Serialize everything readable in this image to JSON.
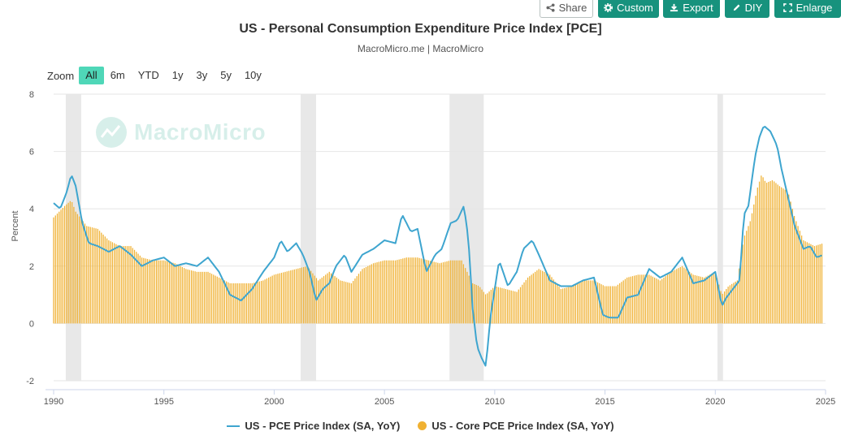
{
  "toolbar": {
    "share": "Share",
    "custom": "Custom",
    "export": "Export",
    "diy": "DIY",
    "enlarge": "Enlarge"
  },
  "title": "US - Personal Consumption Expenditure Price Index [PCE]",
  "subtitle": "MacroMicro.me | MacroMicro",
  "zoom": {
    "label": "Zoom",
    "options": [
      "All",
      "6m",
      "YTD",
      "1y",
      "3y",
      "5y",
      "10y"
    ],
    "selected": "All"
  },
  "watermark": "MacroMicro",
  "colors": {
    "pce": "#3ea5cf",
    "core": "#f0b132",
    "recession": "#e8e8e8",
    "accent": "#17927d"
  },
  "chart_data": {
    "type": "line+bar",
    "ylabel": "Percent",
    "ylim": [
      -2,
      8
    ],
    "yticks": [
      -2,
      0,
      2,
      4,
      6,
      8
    ],
    "xlim": [
      1990,
      2025
    ],
    "xticks": [
      1990,
      1995,
      2000,
      2005,
      2010,
      2015,
      2020,
      2025
    ],
    "grid": true,
    "legend_position": "bottom-center",
    "recession_bands": [
      [
        1990.55,
        1991.25
      ],
      [
        2001.2,
        2001.9
      ],
      [
        2007.95,
        2009.5
      ],
      [
        2020.1,
        2020.35
      ]
    ],
    "series": [
      {
        "name": "US - PCE Price Index (SA, YoY)",
        "kind": "line",
        "x": [
          1990.0,
          1990.3,
          1990.6,
          1990.8,
          1991.0,
          1991.3,
          1991.6,
          1992.0,
          1992.5,
          1993.0,
          1993.5,
          1994.0,
          1994.5,
          1995.0,
          1995.5,
          1996.0,
          1996.5,
          1997.0,
          1997.5,
          1998.0,
          1998.5,
          1999.0,
          1999.5,
          2000.0,
          2000.3,
          2000.6,
          2001.0,
          2001.3,
          2001.6,
          2001.9,
          2002.2,
          2002.5,
          2002.8,
          2003.2,
          2003.5,
          2004.0,
          2004.5,
          2005.0,
          2005.5,
          2005.8,
          2006.2,
          2006.5,
          2006.9,
          2007.3,
          2007.6,
          2008.0,
          2008.3,
          2008.6,
          2008.8,
          2009.0,
          2009.2,
          2009.4,
          2009.6,
          2009.8,
          2010.2,
          2010.6,
          2011.0,
          2011.3,
          2011.7,
          2012.0,
          2012.5,
          2013.0,
          2013.5,
          2014.0,
          2014.5,
          2014.9,
          2015.2,
          2015.6,
          2016.0,
          2016.5,
          2017.0,
          2017.5,
          2018.0,
          2018.5,
          2019.0,
          2019.5,
          2020.0,
          2020.3,
          2020.5,
          2020.8,
          2021.1,
          2021.3,
          2021.5,
          2021.8,
          2022.0,
          2022.2,
          2022.5,
          2022.8,
          2023.0,
          2023.3,
          2023.6,
          2024.0,
          2024.3,
          2024.6,
          2024.9
        ],
        "values": [
          4.2,
          4.0,
          4.6,
          5.2,
          4.8,
          3.5,
          2.8,
          2.7,
          2.5,
          2.7,
          2.4,
          2.0,
          2.2,
          2.3,
          2.0,
          2.1,
          2.0,
          2.3,
          1.8,
          1.0,
          0.8,
          1.2,
          1.8,
          2.3,
          2.9,
          2.5,
          2.8,
          2.4,
          1.8,
          0.8,
          1.2,
          1.4,
          2.0,
          2.4,
          1.8,
          2.4,
          2.6,
          2.9,
          2.8,
          3.8,
          3.2,
          3.3,
          1.8,
          2.4,
          2.6,
          3.5,
          3.6,
          4.1,
          3.0,
          0.5,
          -0.8,
          -1.2,
          -1.5,
          0.2,
          2.2,
          1.3,
          1.8,
          2.6,
          2.9,
          2.4,
          1.5,
          1.3,
          1.3,
          1.5,
          1.6,
          0.3,
          0.2,
          0.2,
          0.9,
          1.0,
          1.9,
          1.6,
          1.8,
          2.3,
          1.4,
          1.5,
          1.8,
          0.6,
          0.9,
          1.2,
          1.5,
          3.8,
          4.1,
          5.8,
          6.5,
          6.9,
          6.7,
          6.2,
          5.4,
          4.4,
          3.4,
          2.6,
          2.7,
          2.3,
          2.4
        ]
      },
      {
        "name": "US - Core PCE Price Index (SA, YoY)",
        "kind": "bar",
        "x": [
          1990.0,
          1990.5,
          1990.8,
          1991.0,
          1991.5,
          1992.0,
          1992.5,
          1993.0,
          1993.5,
          1994.0,
          1994.5,
          1995.0,
          1995.5,
          1996.0,
          1996.5,
          1997.0,
          1997.5,
          1998.0,
          1998.5,
          1999.0,
          1999.5,
          2000.0,
          2000.5,
          2001.0,
          2001.5,
          2002.0,
          2002.5,
          2003.0,
          2003.5,
          2004.0,
          2004.5,
          2005.0,
          2005.5,
          2006.0,
          2006.5,
          2007.0,
          2007.5,
          2008.0,
          2008.5,
          2009.0,
          2009.3,
          2009.6,
          2010.0,
          2010.5,
          2011.0,
          2011.5,
          2012.0,
          2012.5,
          2013.0,
          2013.5,
          2014.0,
          2014.5,
          2015.0,
          2015.5,
          2016.0,
          2016.5,
          2017.0,
          2017.5,
          2018.0,
          2018.5,
          2019.0,
          2019.5,
          2020.0,
          2020.3,
          2020.6,
          2021.0,
          2021.3,
          2021.6,
          2021.9,
          2022.1,
          2022.3,
          2022.6,
          2022.9,
          2023.3,
          2023.6,
          2024.0,
          2024.5,
          2024.9
        ],
        "values": [
          3.7,
          4.1,
          4.3,
          3.9,
          3.4,
          3.3,
          2.9,
          2.7,
          2.7,
          2.3,
          2.2,
          2.2,
          2.1,
          1.9,
          1.8,
          1.8,
          1.6,
          1.4,
          1.4,
          1.4,
          1.5,
          1.7,
          1.8,
          1.9,
          2.0,
          1.5,
          1.8,
          1.5,
          1.4,
          1.9,
          2.1,
          2.2,
          2.2,
          2.3,
          2.3,
          2.2,
          2.1,
          2.2,
          2.2,
          1.4,
          1.3,
          1.0,
          1.3,
          1.2,
          1.1,
          1.6,
          1.9,
          1.7,
          1.2,
          1.3,
          1.5,
          1.5,
          1.3,
          1.3,
          1.6,
          1.7,
          1.7,
          1.5,
          1.8,
          2.0,
          1.7,
          1.6,
          1.8,
          1.0,
          1.3,
          1.5,
          3.0,
          3.6,
          4.7,
          5.2,
          4.9,
          5.0,
          4.8,
          4.6,
          3.7,
          2.9,
          2.7,
          2.8
        ]
      }
    ]
  }
}
